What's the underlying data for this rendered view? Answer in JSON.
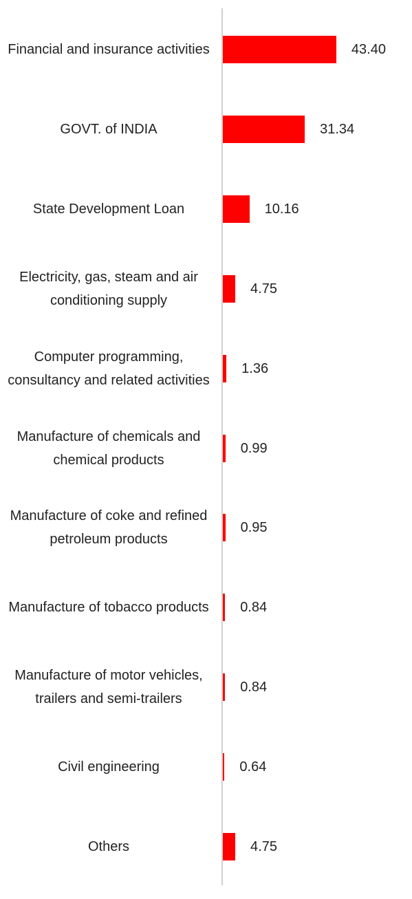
{
  "chart_data": {
    "type": "bar",
    "orientation": "horizontal",
    "categories": [
      "Financial and insurance activities",
      "GOVT. of INDIA",
      "State Development Loan",
      "Electricity, gas, steam and air conditioning supply",
      "Computer programming, consultancy and related activities",
      "Manufacture of chemicals and chemical products",
      "Manufacture of coke and refined petroleum products",
      "Manufacture of tobacco products",
      "Manufacture of motor vehicles, trailers and semi-trailers",
      "Civil engineering",
      "Others"
    ],
    "values": [
      43.4,
      31.34,
      10.16,
      4.75,
      1.36,
      0.99,
      0.95,
      0.84,
      0.84,
      0.64,
      4.75
    ],
    "value_labels": [
      "43.40",
      "31.34",
      "10.16",
      "4.75",
      "1.36",
      "0.99",
      "0.95",
      "0.84",
      "0.84",
      "0.64",
      "4.75"
    ],
    "color": "#ff0000"
  }
}
